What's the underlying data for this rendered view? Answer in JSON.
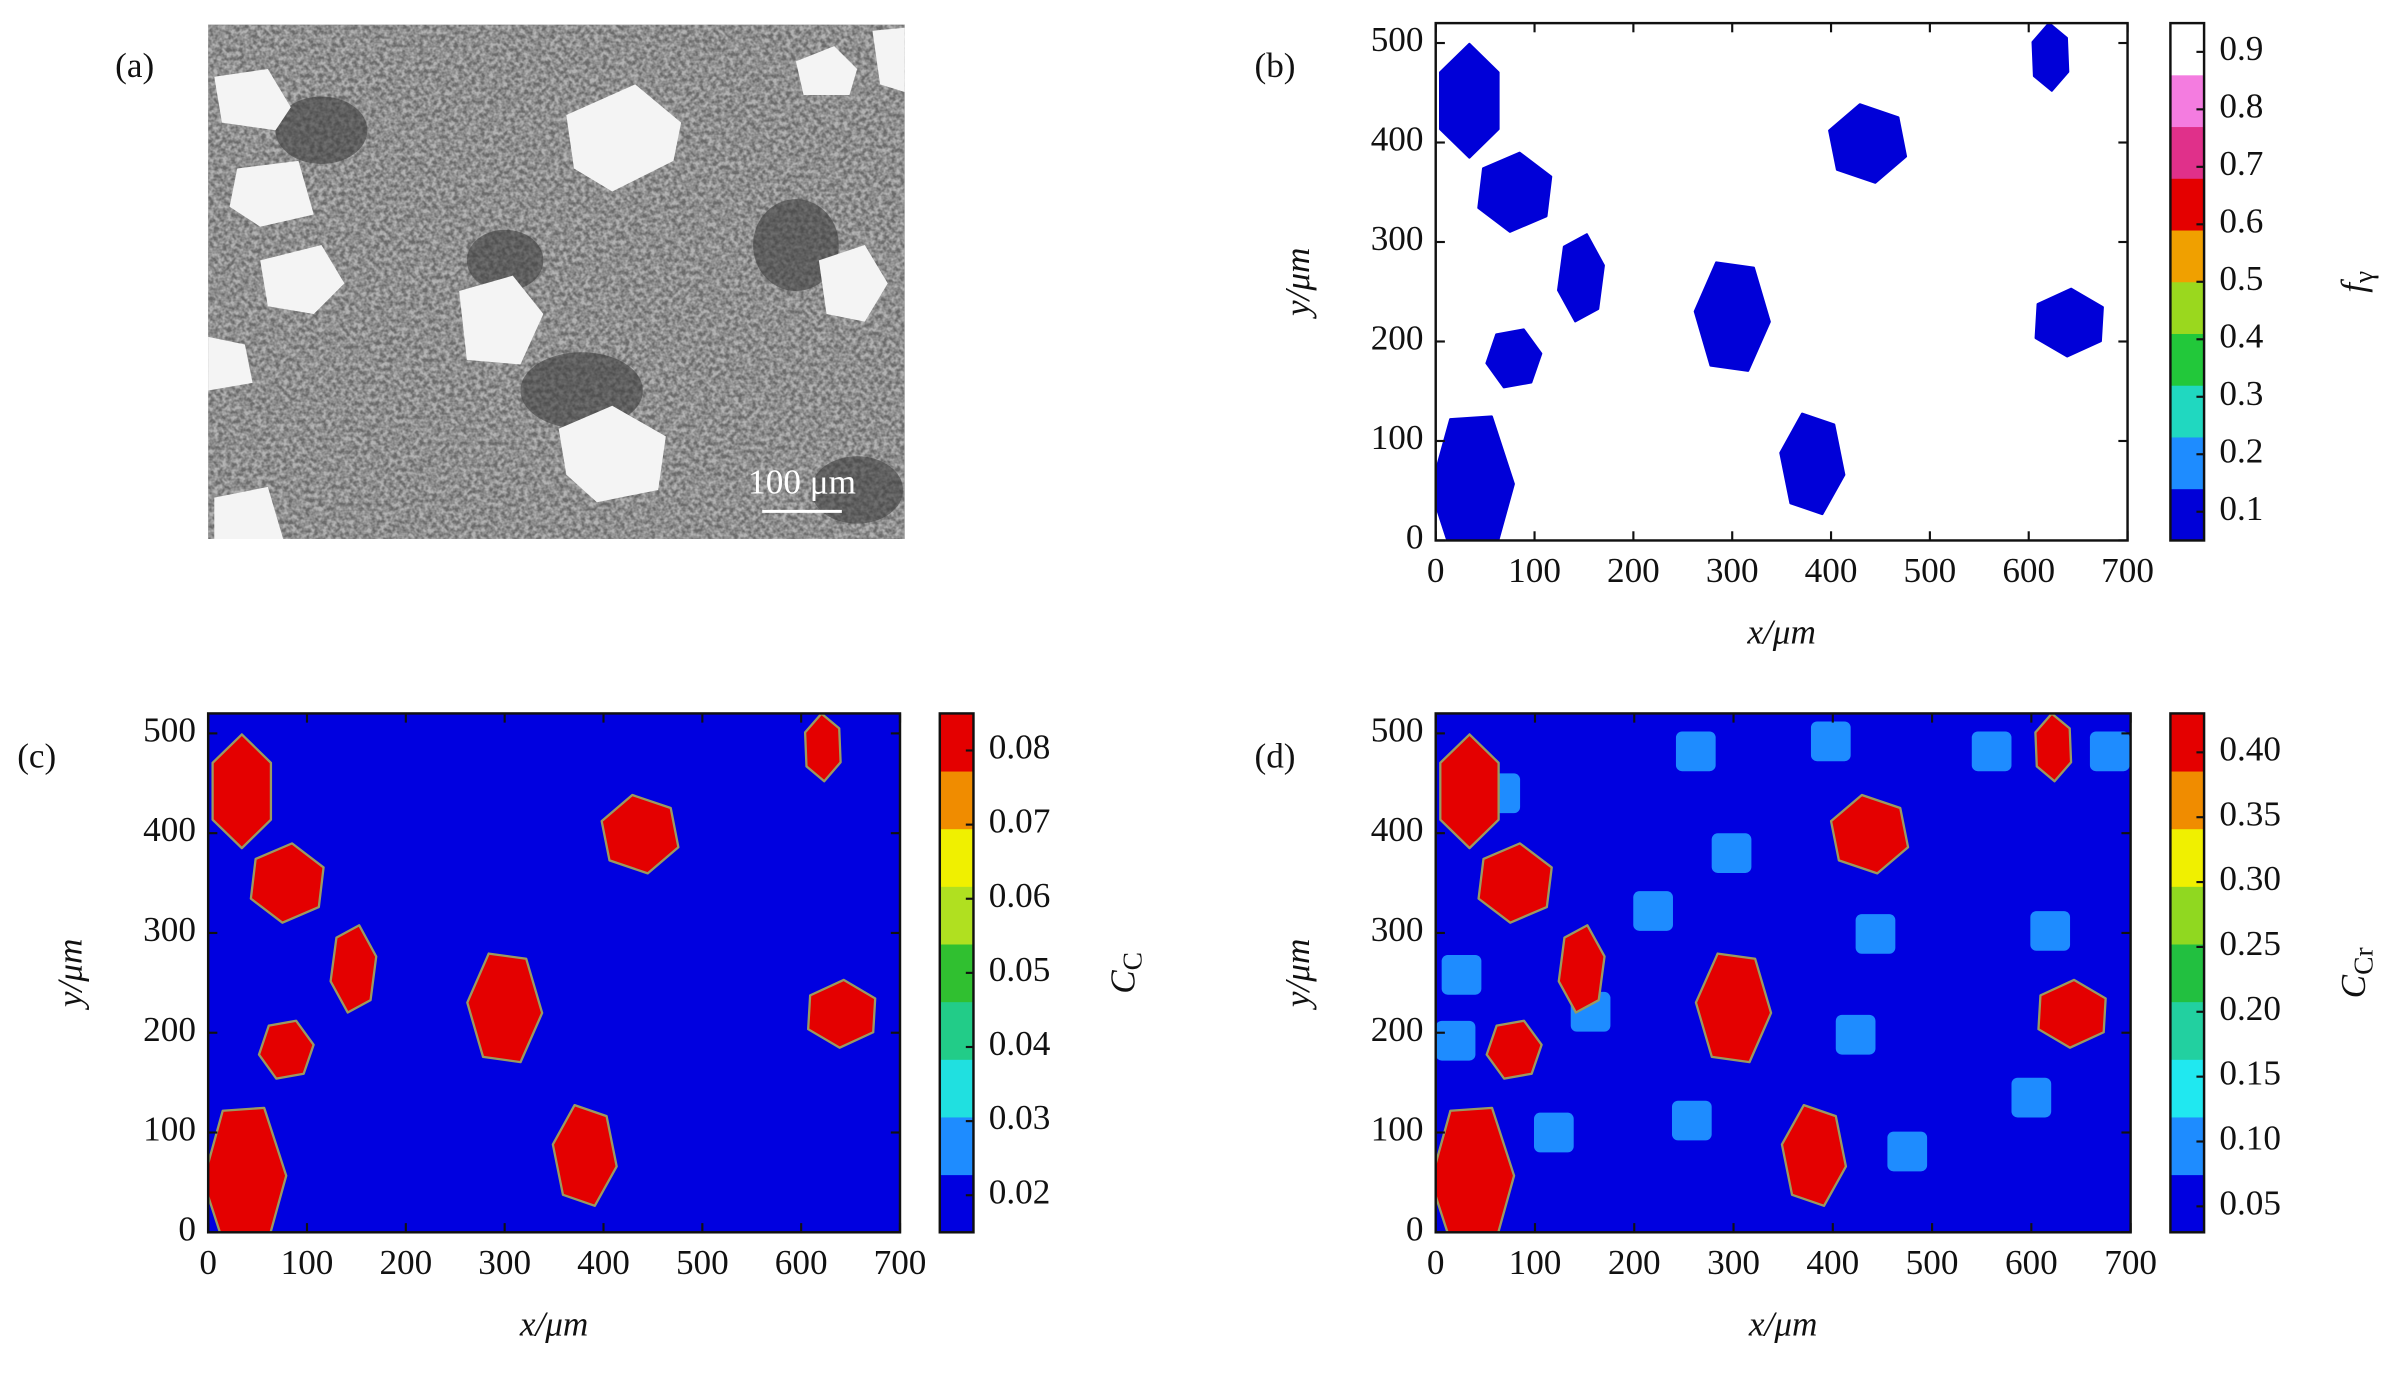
{
  "chart_data": [
    {
      "type": "image",
      "panel_label": "(a)",
      "scale_bar": "100 μm"
    },
    {
      "type": "heatmap",
      "panel_label": "(b)",
      "xlabel": "x/μm",
      "ylabel": "y/μm",
      "xlim": [
        0,
        700
      ],
      "ylim": [
        0,
        520
      ],
      "xticks": [
        0,
        100,
        200,
        300,
        400,
        500,
        600,
        700
      ],
      "yticks": [
        0,
        100,
        200,
        300,
        400,
        500
      ],
      "clim": [
        0.05,
        0.95
      ],
      "colorbar_ticks": [
        0.1,
        0.2,
        0.3,
        0.4,
        0.5,
        0.6,
        0.7,
        0.8,
        0.9
      ],
      "colors": [
        "#0000d8",
        "#1e8cff",
        "#20d8c0",
        "#22c83a",
        "#9ad81e",
        "#f0a000",
        "#e40000",
        "#e0308a",
        "#f47ce0",
        "#ffffff"
      ],
      "colorbar_label": {
        "main": "f",
        "sub": "γ"
      },
      "background": 0.95,
      "grain_value": 0.07,
      "grains": {
        "x": [
          34,
          80,
          147,
          79,
          37,
          300,
          381,
          437,
          622,
          641
        ],
        "y": [
          442,
          350,
          264,
          183,
          54,
          225,
          77,
          399,
          486,
          219
        ],
        "rx": [
          34,
          40,
          24,
          28,
          42,
          38,
          33,
          41,
          20,
          38
        ],
        "ry": [
          57,
          40,
          45,
          31,
          80,
          60,
          53,
          40,
          34,
          34
        ]
      }
    },
    {
      "type": "heatmap",
      "panel_label": "(c)",
      "xlabel": "x/μm",
      "ylabel": "y/μm",
      "xlim": [
        0,
        700
      ],
      "ylim": [
        0,
        520
      ],
      "xticks": [
        0,
        100,
        200,
        300,
        400,
        500,
        600,
        700
      ],
      "yticks": [
        0,
        100,
        200,
        300,
        400,
        500
      ],
      "clim": [
        0.015,
        0.085
      ],
      "colorbar_ticks": [
        0.02,
        0.03,
        0.04,
        0.05,
        0.06,
        0.07,
        0.08
      ],
      "colors": [
        "#0000e0",
        "#1e8cff",
        "#20e0e0",
        "#22cc88",
        "#30c030",
        "#b0e020",
        "#f0f000",
        "#f08c00",
        "#e40000"
      ],
      "colorbar_label": {
        "main": "C",
        "sub": "C"
      },
      "background": 0.018,
      "grain_value": 0.084,
      "grains": {
        "x": [
          34,
          80,
          147,
          79,
          37,
          300,
          381,
          437,
          622,
          641
        ],
        "y": [
          442,
          350,
          264,
          183,
          54,
          225,
          77,
          399,
          486,
          219
        ],
        "rx": [
          34,
          40,
          24,
          28,
          42,
          38,
          33,
          41,
          20,
          38
        ],
        "ry": [
          57,
          40,
          45,
          31,
          80,
          60,
          53,
          40,
          34,
          34
        ]
      }
    },
    {
      "type": "heatmap",
      "panel_label": "(d)",
      "xlabel": "x/μm",
      "ylabel": "y/μm",
      "xlim": [
        0,
        700
      ],
      "ylim": [
        0,
        520
      ],
      "xticks": [
        0,
        100,
        200,
        300,
        400,
        500,
        600,
        700
      ],
      "yticks": [
        0,
        100,
        200,
        300,
        400,
        500
      ],
      "clim": [
        0.03,
        0.43
      ],
      "colorbar_ticks": [
        0.05,
        {
          "value": 0.1,
          "label": "0.10"
        },
        0.15,
        {
          "value": 0.2,
          "label": "0.20"
        },
        0.25,
        {
          "value": 0.3,
          "label": "0.30"
        },
        0.35,
        {
          "value": 0.4,
          "label": "0.40"
        }
      ],
      "colors": [
        "#0000e0",
        "#1e8cff",
        "#20e8f0",
        "#22d0a0",
        "#22c040",
        "#90d820",
        "#f0f000",
        "#f08c00",
        "#e40000"
      ],
      "colorbar_label": {
        "main": "C",
        "sub": "Cr"
      },
      "background": 0.04,
      "grain_value": 0.42,
      "grains": {
        "x": [
          34,
          80,
          147,
          79,
          37,
          300,
          381,
          437,
          622,
          641
        ],
        "y": [
          442,
          350,
          264,
          183,
          54,
          225,
          77,
          399,
          486,
          219
        ],
        "rx": [
          34,
          40,
          24,
          28,
          42,
          38,
          33,
          41,
          20,
          38
        ],
        "ry": [
          57,
          40,
          45,
          31,
          80,
          60,
          53,
          40,
          34,
          34
        ]
      },
      "square_value": 0.09,
      "square_size": 40,
      "squares": {
        "x": [
          65,
          262,
          398,
          560,
          679,
          298,
          443,
          219,
          26,
          619,
          156,
          423,
          475,
          258,
          119,
          600,
          20
        ],
        "y": [
          440,
          482,
          492,
          482,
          482,
          380,
          299,
          322,
          258,
          302,
          221,
          198,
          81,
          112,
          100,
          135,
          192
        ]
      }
    }
  ]
}
